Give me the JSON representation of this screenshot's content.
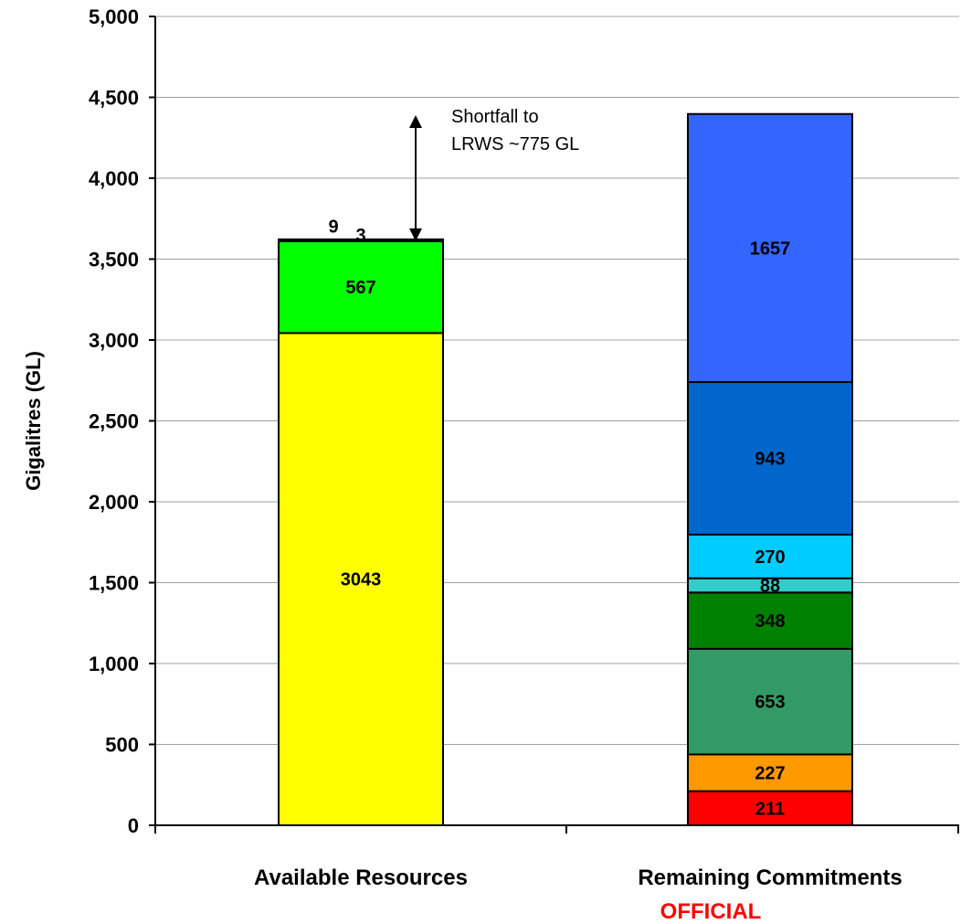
{
  "chart_data": {
    "type": "bar",
    "stacked": true,
    "ylabel": "Gigalitres (GL)",
    "ylim": [
      0,
      5000
    ],
    "yticks": [
      "0",
      "500",
      "1,000",
      "1,500",
      "2,000",
      "2,500",
      "3,000",
      "3,500",
      "4,000",
      "4,500",
      "5,000"
    ],
    "ytick_values": [
      0,
      500,
      1000,
      1500,
      2000,
      2500,
      3000,
      3500,
      4000,
      4500,
      5000
    ],
    "grid": true,
    "categories": [
      "Available Resources",
      "Remaining Commitments"
    ],
    "stacks": [
      {
        "category": "Available Resources",
        "segments": [
          {
            "value": 3043,
            "label": "3043",
            "color": "#ffff00"
          },
          {
            "value": 567,
            "label": "567",
            "color": "#00ff00"
          },
          {
            "value": 9,
            "label": "9",
            "color": "#000000"
          },
          {
            "value": 3,
            "label": "3",
            "color": "#000000"
          }
        ]
      },
      {
        "category": "Remaining Commitments",
        "segments": [
          {
            "value": 211,
            "label": "211",
            "color": "#ff0000"
          },
          {
            "value": 227,
            "label": "227",
            "color": "#ff9900"
          },
          {
            "value": 653,
            "label": "653",
            "color": "#339966"
          },
          {
            "value": 348,
            "label": "348",
            "color": "#008000"
          },
          {
            "value": 88,
            "label": "88",
            "color": "#33cccc"
          },
          {
            "value": 270,
            "label": "270",
            "color": "#00ccff"
          },
          {
            "value": 943,
            "label": "943",
            "color": "#0066cc"
          },
          {
            "value": 1657,
            "label": "1657",
            "color": "#3366ff"
          }
        ]
      }
    ],
    "annotations": [
      {
        "text_lines": [
          "Shortfall to",
          "LRWS ~775 GL"
        ]
      }
    ]
  },
  "footer": {
    "classification": "OFFICIAL",
    "classification_color": "#ff0000"
  }
}
